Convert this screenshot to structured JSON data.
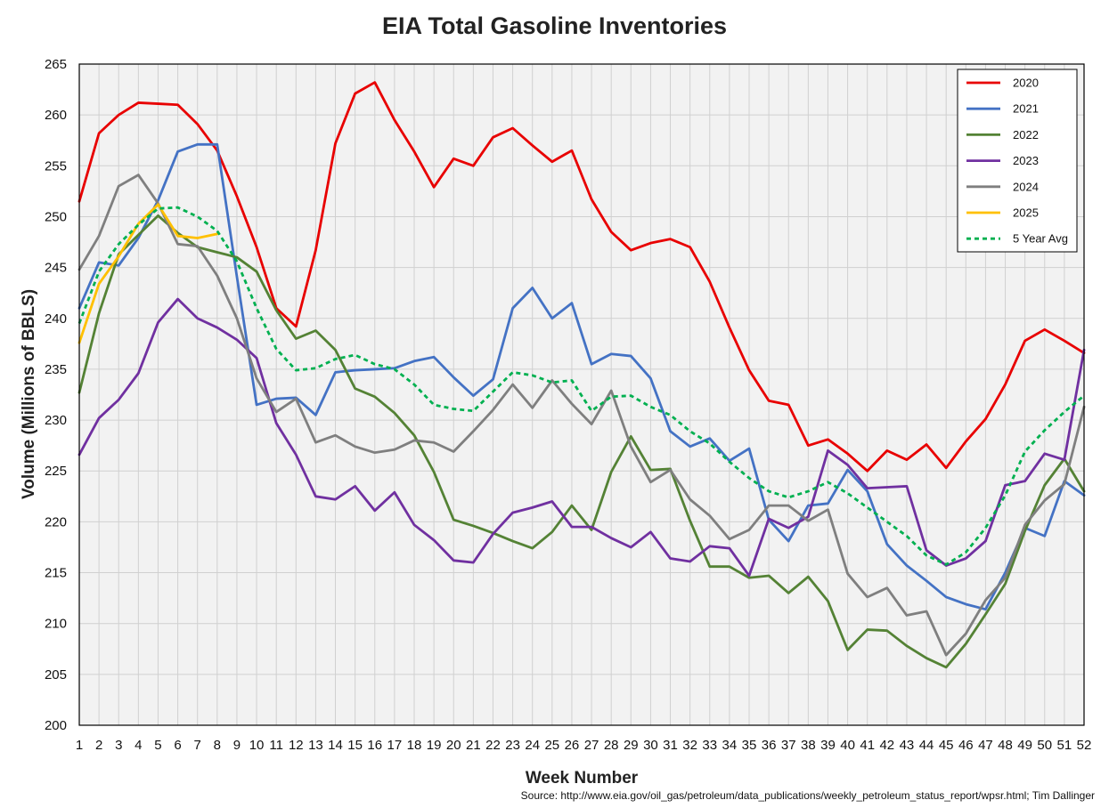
{
  "chart_data": {
    "type": "line",
    "title": "EIA Total Gasoline Inventories",
    "xlabel": "Week Number",
    "ylabel": "Volume (Millions of BBLS)",
    "source": "Source: http://www.eia.gov/oil_gas/petroleum/data_publications/weekly_petroleum_status_report/wpsr.html; Tim Dallinger",
    "xlim": [
      1,
      52
    ],
    "ylim": [
      200,
      265
    ],
    "ytick_step": 5,
    "grid": true,
    "legend_position": "top-right",
    "series": [
      {
        "name": "2020",
        "color": "#e80000",
        "dash": false,
        "values": [
          251.5,
          258.2,
          260.0,
          261.2,
          261.1,
          261.0,
          259.1,
          256.5,
          252.0,
          247.0,
          241.0,
          239.2,
          246.7,
          257.2,
          262.1,
          263.2,
          259.5,
          256.4,
          252.9,
          255.7,
          255.0,
          257.8,
          258.7,
          257.0,
          255.4,
          256.5,
          251.7,
          248.5,
          246.7,
          247.4,
          247.8,
          247.0,
          243.6,
          239.1,
          234.9,
          231.9,
          231.5,
          227.5,
          228.1,
          226.7,
          225.0,
          227.0,
          226.1,
          227.6,
          225.3,
          227.9,
          230.1,
          233.5,
          237.8,
          238.9,
          237.8,
          236.6
        ]
      },
      {
        "name": "2021",
        "color": "#4472c4",
        "dash": false,
        "values": [
          241.0,
          245.5,
          245.2,
          247.9,
          251.6,
          256.4,
          257.1,
          257.1,
          244.1,
          231.5,
          232.1,
          232.2,
          230.5,
          234.7,
          234.9,
          235.0,
          235.1,
          235.8,
          236.2,
          234.2,
          232.4,
          234.0,
          241.0,
          243.0,
          240.0,
          241.5,
          235.5,
          236.5,
          236.3,
          234.1,
          228.9,
          227.4,
          228.2,
          226.0,
          227.2,
          220.2,
          218.1,
          221.6,
          221.8,
          225.1,
          223.0,
          217.8,
          215.7,
          214.2,
          212.6,
          211.9,
          211.4,
          215.0,
          219.4,
          218.6,
          224.0,
          222.6
        ]
      },
      {
        "name": "2022",
        "color": "#548235",
        "dash": false,
        "values": [
          232.7,
          240.5,
          246.3,
          248.2,
          250.1,
          248.4,
          247.0,
          246.5,
          246.0,
          244.6,
          240.8,
          238.0,
          238.8,
          236.9,
          233.1,
          232.3,
          230.7,
          228.5,
          224.9,
          220.2,
          219.6,
          218.9,
          218.1,
          217.4,
          219.0,
          221.6,
          219.2,
          224.9,
          228.4,
          225.1,
          225.2,
          220.1,
          215.6,
          215.6,
          214.5,
          214.7,
          213.0,
          214.6,
          212.2,
          207.4,
          209.4,
          209.3,
          207.8,
          206.6,
          205.7,
          208.0,
          210.9,
          213.9,
          219.1,
          223.6,
          226.2,
          223.0
        ]
      },
      {
        "name": "2023",
        "color": "#7030a0",
        "dash": false,
        "values": [
          226.6,
          230.2,
          232.0,
          234.6,
          239.6,
          241.9,
          240.0,
          239.1,
          237.9,
          236.1,
          229.7,
          226.6,
          222.5,
          222.2,
          223.5,
          221.1,
          222.9,
          219.7,
          218.2,
          216.2,
          216.0,
          218.8,
          220.9,
          221.4,
          222.0,
          219.5,
          219.5,
          218.4,
          217.5,
          219.0,
          216.4,
          216.1,
          217.6,
          217.4,
          214.7,
          220.3,
          219.4,
          220.5,
          227.0,
          225.6,
          223.3,
          223.4,
          223.5,
          217.2,
          215.7,
          216.4,
          218.1,
          223.6,
          224.0,
          226.7,
          226.1,
          236.9
        ]
      },
      {
        "name": "2024",
        "color": "#7f7f7f",
        "dash": false,
        "values": [
          244.8,
          248.1,
          253.0,
          254.1,
          251.3,
          247.3,
          247.1,
          244.2,
          240.0,
          234.1,
          230.8,
          232.1,
          227.8,
          228.5,
          227.4,
          226.8,
          227.1,
          228.0,
          227.8,
          226.9,
          228.9,
          231.0,
          233.5,
          231.2,
          233.9,
          231.6,
          229.6,
          232.9,
          227.4,
          223.9,
          225.1,
          222.2,
          220.6,
          218.3,
          219.2,
          221.6,
          221.6,
          220.1,
          221.2,
          214.9,
          212.6,
          213.5,
          210.8,
          211.2,
          206.9,
          209.0,
          212.3,
          214.5,
          219.7,
          222.1,
          223.7,
          231.3
        ]
      },
      {
        "name": "2025",
        "color": "#ffc000",
        "dash": false,
        "values": [
          237.6,
          243.4,
          246.1,
          249.3,
          251.2,
          248.1,
          247.9,
          248.3
        ]
      },
      {
        "name": "5 Year Avg",
        "color": "#00b050",
        "dash": true,
        "values": [
          239.5,
          244.6,
          247.3,
          249.2,
          250.8,
          250.9,
          250.0,
          248.6,
          245.6,
          241.0,
          237.0,
          234.9,
          235.1,
          236.0,
          236.4,
          235.5,
          235.0,
          233.5,
          231.5,
          231.1,
          230.9,
          232.8,
          234.7,
          234.4,
          233.7,
          233.9,
          230.9,
          232.3,
          232.4,
          231.3,
          230.5,
          228.9,
          227.7,
          225.9,
          224.3,
          223.0,
          222.4,
          223.0,
          223.9,
          222.8,
          221.4,
          220.0,
          218.6,
          216.7,
          215.8,
          217.0,
          219.4,
          222.6,
          226.9,
          229.0,
          230.8,
          232.4
        ]
      }
    ]
  }
}
